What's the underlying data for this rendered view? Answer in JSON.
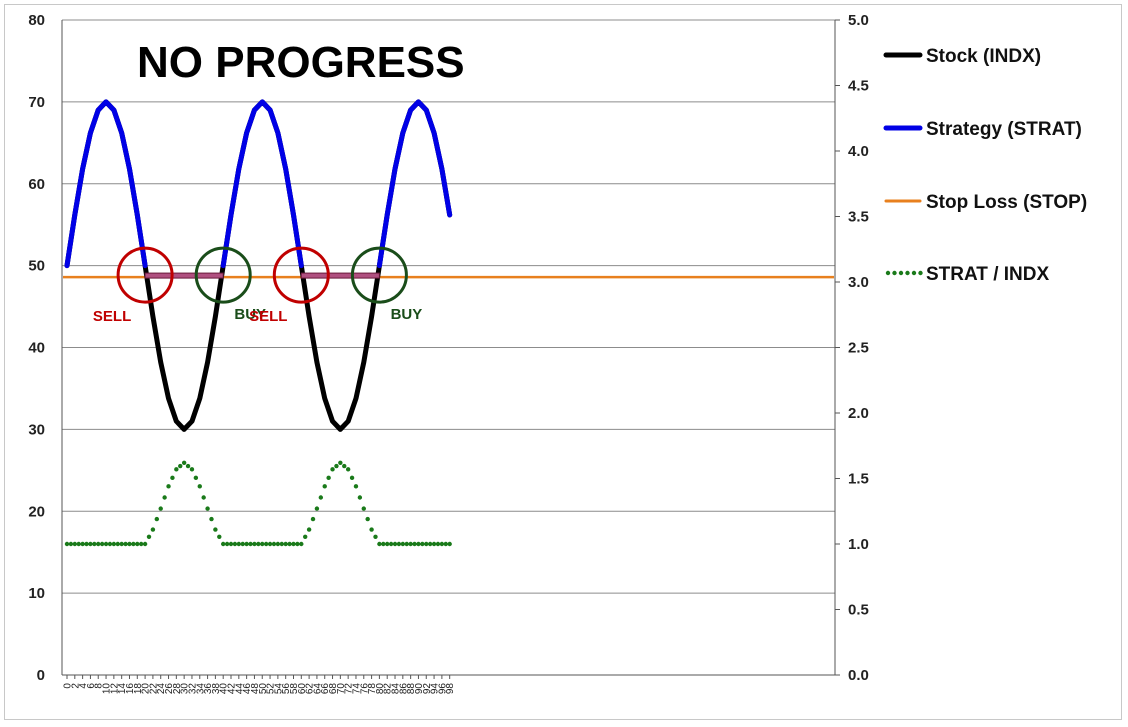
{
  "chart_data": {
    "type": "line",
    "title": "NO PROGRESS",
    "x": [
      0,
      2,
      4,
      6,
      8,
      10,
      12,
      14,
      16,
      18,
      20,
      22,
      24,
      26,
      28,
      30,
      32,
      34,
      36,
      38,
      40,
      42,
      44,
      46,
      48,
      50,
      52,
      54,
      56,
      58,
      60,
      62,
      64,
      66,
      68,
      70,
      72,
      74,
      76,
      78,
      80,
      82,
      84,
      86,
      88,
      90,
      92,
      94,
      96,
      98
    ],
    "x_tick_labels": [
      "0",
      "2",
      "4",
      "6",
      "8",
      "10",
      "12",
      "14",
      "16",
      "18",
      "20",
      "22",
      "24",
      "26",
      "28",
      "30",
      "32",
      "34",
      "36",
      "38",
      "40",
      "42",
      "44",
      "46",
      "48",
      "50",
      "52",
      "54",
      "56",
      "58",
      "60",
      "62",
      "64",
      "66",
      "68",
      "70",
      "72",
      "74",
      "76",
      "78",
      "80",
      "82",
      "84",
      "86",
      "88",
      "90",
      "92",
      "94",
      "96",
      "98"
    ],
    "ylim_left": [
      0,
      80
    ],
    "y_left_ticks": [
      "0",
      "10",
      "20",
      "30",
      "40",
      "50",
      "60",
      "70",
      "80"
    ],
    "ylim_right": [
      0,
      5
    ],
    "y_right_ticks": [
      "0.0",
      "0.5",
      "1.0",
      "1.5",
      "2.0",
      "2.5",
      "3.0",
      "3.5",
      "4.0",
      "4.5",
      "5.0"
    ],
    "grid": "horizontal",
    "legend_position": "right",
    "series": [
      {
        "name": "Stock (INDX)",
        "color": "#000000",
        "axis": "left",
        "x": [
          0,
          2,
          4,
          6,
          8,
          10,
          12,
          14,
          16,
          18,
          20,
          22,
          24,
          26,
          28,
          30,
          32,
          34,
          36,
          38,
          40,
          42,
          44,
          46,
          48,
          50,
          52,
          54,
          56,
          58,
          60,
          62,
          64,
          66,
          68,
          70,
          72,
          74,
          76,
          78,
          80,
          82,
          84,
          86,
          88,
          90,
          92,
          94,
          96,
          98
        ],
        "values": [
          50,
          56.2,
          61.8,
          66.2,
          69,
          70,
          69,
          66.2,
          61.8,
          56.2,
          50,
          43.8,
          38.2,
          33.8,
          31,
          30,
          31,
          33.8,
          38.2,
          43.8,
          50,
          56.2,
          61.8,
          66.2,
          69,
          70,
          69,
          66.2,
          61.8,
          56.2,
          50,
          43.8,
          38.2,
          33.8,
          31,
          30,
          31,
          33.8,
          38.2,
          43.8,
          50,
          56.2,
          61.8,
          66.2,
          69,
          70,
          69,
          66.2,
          61.8,
          56.2
        ]
      },
      {
        "name": "Strategy (STRAT)",
        "color": "#0000e6",
        "axis": "left",
        "x": [
          0,
          2,
          4,
          6,
          8,
          10,
          12,
          14,
          16,
          18,
          20,
          22,
          24,
          26,
          28,
          30,
          32,
          34,
          36,
          38,
          40,
          42,
          44,
          46,
          48,
          50,
          52,
          54,
          56,
          58,
          60,
          62,
          64,
          66,
          68,
          70,
          72,
          74,
          76,
          78,
          80,
          82,
          84,
          86,
          88,
          90,
          92,
          94,
          96,
          98
        ],
        "values": [
          50,
          56.2,
          61.8,
          66.2,
          69,
          70,
          69,
          66.2,
          61.8,
          56.2,
          50,
          48.6,
          48.6,
          48.6,
          48.6,
          48.6,
          48.6,
          48.6,
          48.6,
          48.6,
          50,
          56.2,
          61.8,
          66.2,
          69,
          70,
          69,
          66.2,
          61.8,
          56.2,
          50,
          48.6,
          48.6,
          48.6,
          48.6,
          48.6,
          48.6,
          48.6,
          48.6,
          48.6,
          50,
          56.2,
          61.8,
          66.2,
          69,
          70,
          69,
          66.2,
          61.8,
          56.2
        ]
      },
      {
        "name": "Stop Loss (STOP)",
        "color": "#e8801e",
        "axis": "left",
        "x": [
          0,
          98
        ],
        "values": [
          48.6,
          48.6
        ]
      },
      {
        "name": "STRAT / INDX",
        "color": "#1a7a1a",
        "axis": "right",
        "x": [
          0,
          2,
          4,
          6,
          8,
          10,
          12,
          14,
          16,
          18,
          20,
          22,
          24,
          26,
          28,
          30,
          32,
          34,
          36,
          38,
          40,
          42,
          44,
          46,
          48,
          50,
          52,
          54,
          56,
          58,
          60,
          62,
          64,
          66,
          68,
          70,
          72,
          74,
          76,
          78,
          80,
          82,
          84,
          86,
          88,
          90,
          92,
          94,
          96,
          98
        ],
        "values": [
          1,
          1,
          1,
          1,
          1,
          1,
          1,
          1,
          1,
          1,
          1,
          1.11,
          1.27,
          1.44,
          1.57,
          1.62,
          1.57,
          1.44,
          1.27,
          1.11,
          1,
          1,
          1,
          1,
          1,
          1,
          1,
          1,
          1,
          1,
          1,
          1.11,
          1.27,
          1.44,
          1.57,
          1.62,
          1.57,
          1.44,
          1.27,
          1.11,
          1,
          1,
          1,
          1,
          1,
          1,
          1,
          1,
          1,
          1
        ]
      }
    ],
    "annotations": [
      {
        "text": "SELL",
        "x": 20,
        "color": "#c00000",
        "circle_color": "#c00000"
      },
      {
        "text": "BUY",
        "x": 40,
        "color": "#1a4d1a",
        "circle_color": "#1a4d1a"
      },
      {
        "text": "SELL",
        "x": 60,
        "color": "#c00000",
        "circle_color": "#c00000"
      },
      {
        "text": "BUY",
        "x": 80,
        "color": "#1a4d1a",
        "circle_color": "#1a4d1a"
      }
    ]
  }
}
